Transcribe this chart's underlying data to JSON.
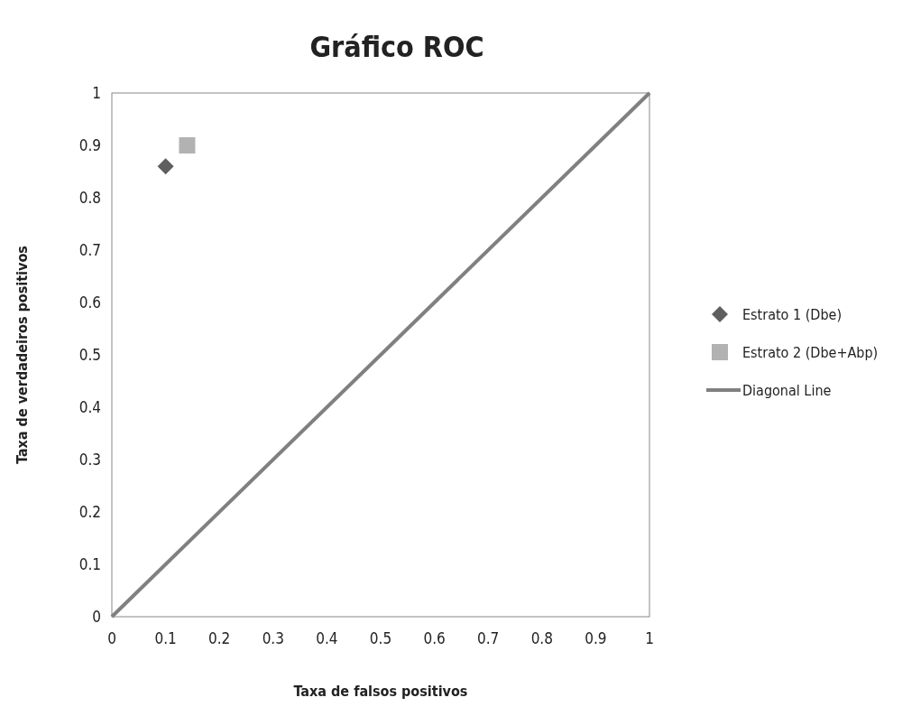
{
  "chart_data": {
    "type": "scatter",
    "title": "Gráfico ROC",
    "xlabel": "Taxa de falsos positivos",
    "ylabel": "Taxa de verdadeiros positivos",
    "series": [
      {
        "name": "Estrato 1 (Dbe)",
        "marker": "diamond",
        "color": "#5f5f5f",
        "x": [
          0.1
        ],
        "values": [
          0.86
        ]
      },
      {
        "name": "Estrato 2 (Dbe+Abp)",
        "marker": "square",
        "color": "#b2b2b2",
        "x": [
          0.14
        ],
        "values": [
          0.9
        ]
      },
      {
        "name": "Diagonal Line",
        "type": "line",
        "marker": "none",
        "color": "#808080",
        "x": [
          0,
          1
        ],
        "values": [
          0,
          1
        ]
      }
    ],
    "xlim": [
      0,
      1
    ],
    "ylim": [
      0,
      1
    ],
    "xticks": [
      0,
      0.1,
      0.2,
      0.3,
      0.4,
      0.5,
      0.6,
      0.7,
      0.8,
      0.9,
      1
    ],
    "yticks": [
      0,
      0.1,
      0.2,
      0.3,
      0.4,
      0.5,
      0.6,
      0.7,
      0.8,
      0.9,
      1
    ],
    "grid": false,
    "legend": "right"
  }
}
